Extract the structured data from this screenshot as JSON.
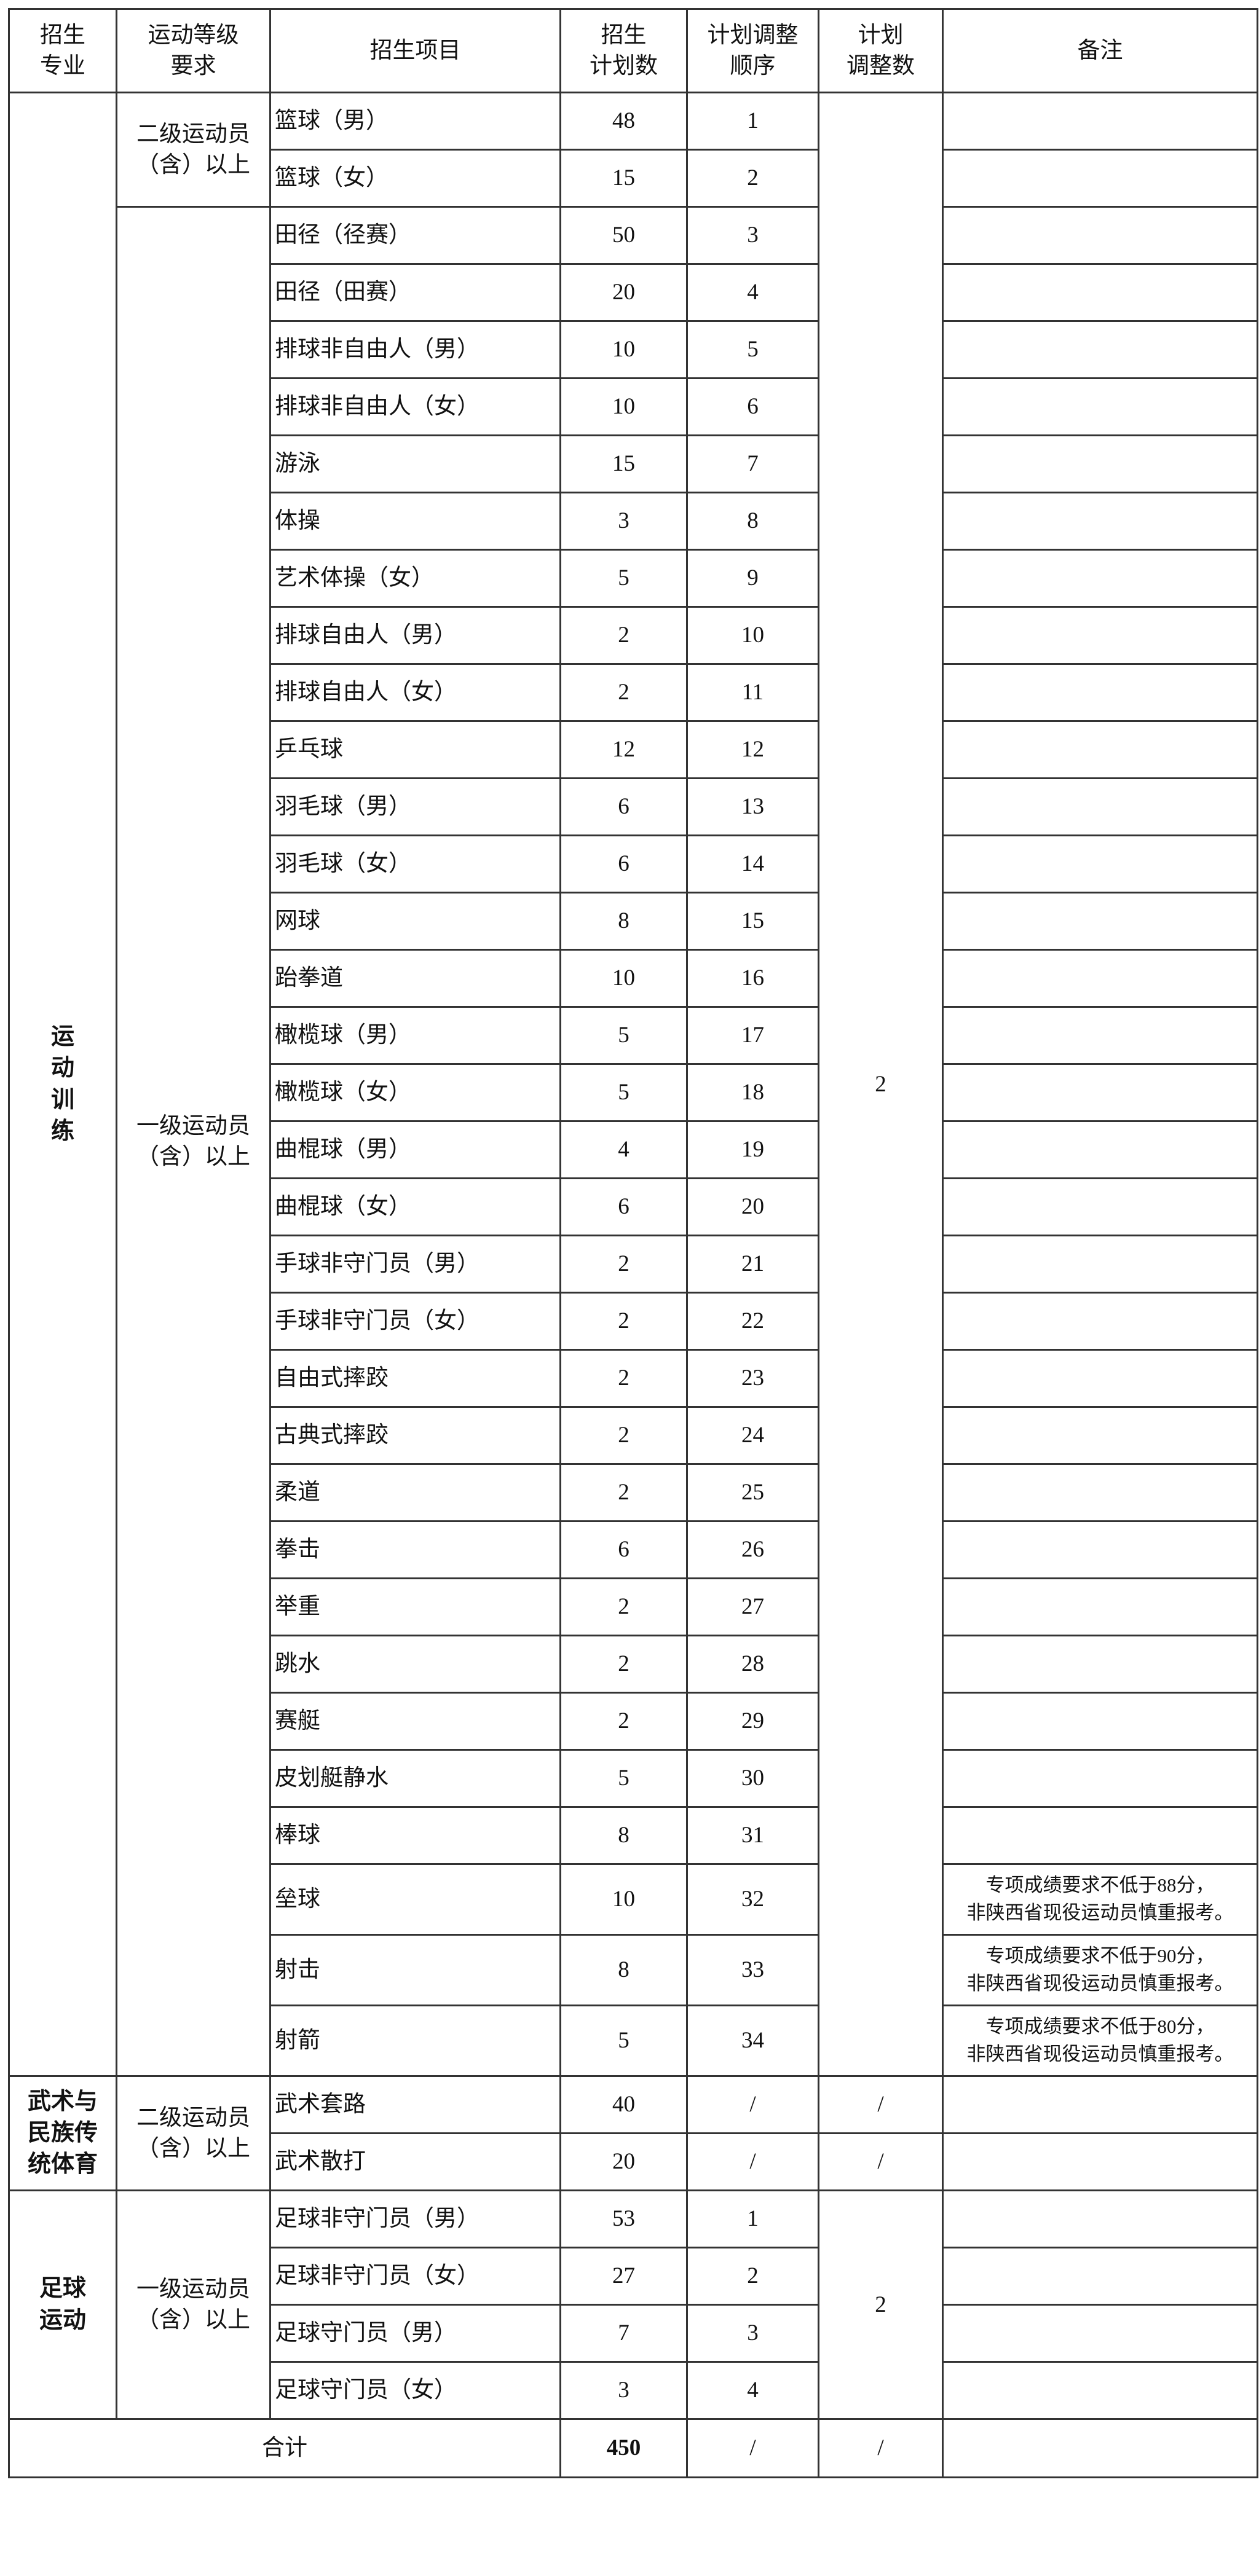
{
  "header": {
    "major": "招生\n专业",
    "level": "运动等级\n要求",
    "item": "招生项目",
    "plan": "招生\n计划数",
    "adjust_order": "计划调整\n顺序",
    "adjust_count": "计划\n调整数",
    "note": "备注"
  },
  "sections": [
    {
      "major": "运\n动\n训\n练",
      "adjust_count": "2",
      "groups": [
        {
          "level": "二级运动员\n（含）以上",
          "items": [
            {
              "name": "篮球（男）",
              "plan": "48",
              "order": "1"
            },
            {
              "name": "篮球（女）",
              "plan": "15",
              "order": "2"
            }
          ]
        },
        {
          "level": "一级运动员\n（含）以上",
          "items": [
            {
              "name": "田径（径赛）",
              "plan": "50",
              "order": "3"
            },
            {
              "name": "田径（田赛）",
              "plan": "20",
              "order": "4"
            },
            {
              "name": "排球非自由人（男）",
              "plan": "10",
              "order": "5"
            },
            {
              "name": "排球非自由人（女）",
              "plan": "10",
              "order": "6"
            },
            {
              "name": "游泳",
              "plan": "15",
              "order": "7"
            },
            {
              "name": "体操",
              "plan": "3",
              "order": "8"
            },
            {
              "name": "艺术体操（女）",
              "plan": "5",
              "order": "9"
            },
            {
              "name": "排球自由人（男）",
              "plan": "2",
              "order": "10"
            },
            {
              "name": "排球自由人（女）",
              "plan": "2",
              "order": "11"
            },
            {
              "name": "乒乓球",
              "plan": "12",
              "order": "12"
            },
            {
              "name": "羽毛球（男）",
              "plan": "6",
              "order": "13"
            },
            {
              "name": "羽毛球（女）",
              "plan": "6",
              "order": "14"
            },
            {
              "name": "网球",
              "plan": "8",
              "order": "15"
            },
            {
              "name": "跆拳道",
              "plan": "10",
              "order": "16"
            },
            {
              "name": "橄榄球（男）",
              "plan": "5",
              "order": "17"
            },
            {
              "name": "橄榄球（女）",
              "plan": "5",
              "order": "18"
            },
            {
              "name": "曲棍球（男）",
              "plan": "4",
              "order": "19"
            },
            {
              "name": "曲棍球（女）",
              "plan": "6",
              "order": "20"
            },
            {
              "name": "手球非守门员（男）",
              "plan": "2",
              "order": "21"
            },
            {
              "name": "手球非守门员（女）",
              "plan": "2",
              "order": "22"
            },
            {
              "name": "自由式摔跤",
              "plan": "2",
              "order": "23"
            },
            {
              "name": "古典式摔跤",
              "plan": "2",
              "order": "24"
            },
            {
              "name": "柔道",
              "plan": "2",
              "order": "25"
            },
            {
              "name": "拳击",
              "plan": "6",
              "order": "26"
            },
            {
              "name": "举重",
              "plan": "2",
              "order": "27"
            },
            {
              "name": "跳水",
              "plan": "2",
              "order": "28"
            },
            {
              "name": "赛艇",
              "plan": "2",
              "order": "29"
            },
            {
              "name": "皮划艇静水",
              "plan": "5",
              "order": "30"
            },
            {
              "name": "棒球",
              "plan": "8",
              "order": "31"
            },
            {
              "name": "垒球",
              "plan": "10",
              "order": "32",
              "note": [
                "专项成绩要求不低于88分，",
                "非陕西省现役运动员慎重报考。"
              ]
            },
            {
              "name": "射击",
              "plan": "8",
              "order": "33",
              "note": [
                "专项成绩要求不低于90分，",
                "非陕西省现役运动员慎重报考。"
              ]
            },
            {
              "name": "射箭",
              "plan": "5",
              "order": "34",
              "note": [
                "专项成绩要求不低于80分，",
                "非陕西省现役运动员慎重报考。"
              ]
            }
          ]
        }
      ]
    },
    {
      "major": "武术与\n民族传\n统体育",
      "groups": [
        {
          "level": "二级运动员\n（含）以上",
          "items": [
            {
              "name": "武术套路",
              "plan": "40",
              "order": "/",
              "adjust_count": "/"
            },
            {
              "name": "武术散打",
              "plan": "20",
              "order": "/",
              "adjust_count": "/"
            }
          ]
        }
      ]
    },
    {
      "major": "足球\n运动",
      "adjust_count": "2",
      "groups": [
        {
          "level": "一级运动员\n（含）以上",
          "items": [
            {
              "name": "足球非守门员（男）",
              "plan": "53",
              "order": "1"
            },
            {
              "name": "足球非守门员（女）",
              "plan": "27",
              "order": "2"
            },
            {
              "name": "足球守门员（男）",
              "plan": "7",
              "order": "3"
            },
            {
              "name": "足球守门员（女）",
              "plan": "3",
              "order": "4"
            }
          ]
        }
      ]
    }
  ],
  "total": {
    "label": "合计",
    "plan": "450",
    "order": "/",
    "adjust_count": "/",
    "note": ""
  },
  "colors": {
    "border": "#333333",
    "text": "#111111",
    "background": "#ffffff"
  }
}
